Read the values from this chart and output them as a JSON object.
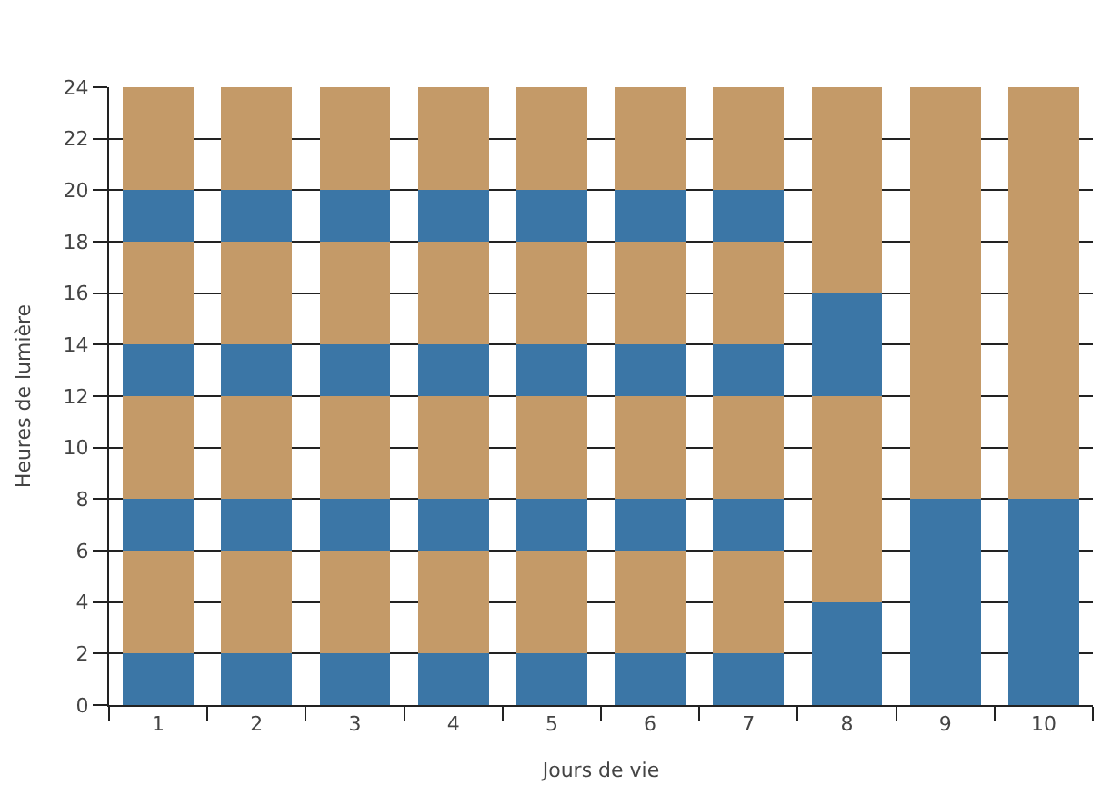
{
  "chart_data": {
    "type": "bar",
    "stacked": true,
    "xlabel": "Jours de vie",
    "ylabel": "Heures de lumière",
    "categories": [
      "1",
      "2",
      "3",
      "4",
      "5",
      "6",
      "7",
      "8",
      "9",
      "10"
    ],
    "series": [
      {
        "color": "#3b76a6",
        "values": [
          2,
          2,
          2,
          2,
          2,
          2,
          2,
          4,
          8,
          8
        ]
      },
      {
        "color": "#c49a68",
        "values": [
          4,
          4,
          4,
          4,
          4,
          4,
          4,
          8,
          16,
          16
        ]
      },
      {
        "color": "#3b76a6",
        "values": [
          2,
          2,
          2,
          2,
          2,
          2,
          2,
          4,
          0,
          0
        ]
      },
      {
        "color": "#c49a68",
        "values": [
          4,
          4,
          4,
          4,
          4,
          4,
          4,
          8,
          0,
          0
        ]
      },
      {
        "color": "#3b76a6",
        "values": [
          2,
          2,
          2,
          2,
          2,
          2,
          2,
          0,
          0,
          0
        ]
      },
      {
        "color": "#c49a68",
        "values": [
          4,
          4,
          4,
          4,
          4,
          4,
          4,
          0,
          0,
          0
        ]
      },
      {
        "color": "#3b76a6",
        "values": [
          2,
          2,
          2,
          2,
          2,
          2,
          2,
          0,
          0,
          0
        ]
      },
      {
        "color": "#c49a68",
        "values": [
          4,
          4,
          4,
          4,
          4,
          4,
          4,
          0,
          0,
          0
        ]
      }
    ],
    "ylim": [
      0,
      24
    ],
    "yticks": [
      0,
      2,
      4,
      6,
      8,
      10,
      12,
      14,
      16,
      18,
      20,
      22,
      24
    ],
    "grid": "y"
  }
}
